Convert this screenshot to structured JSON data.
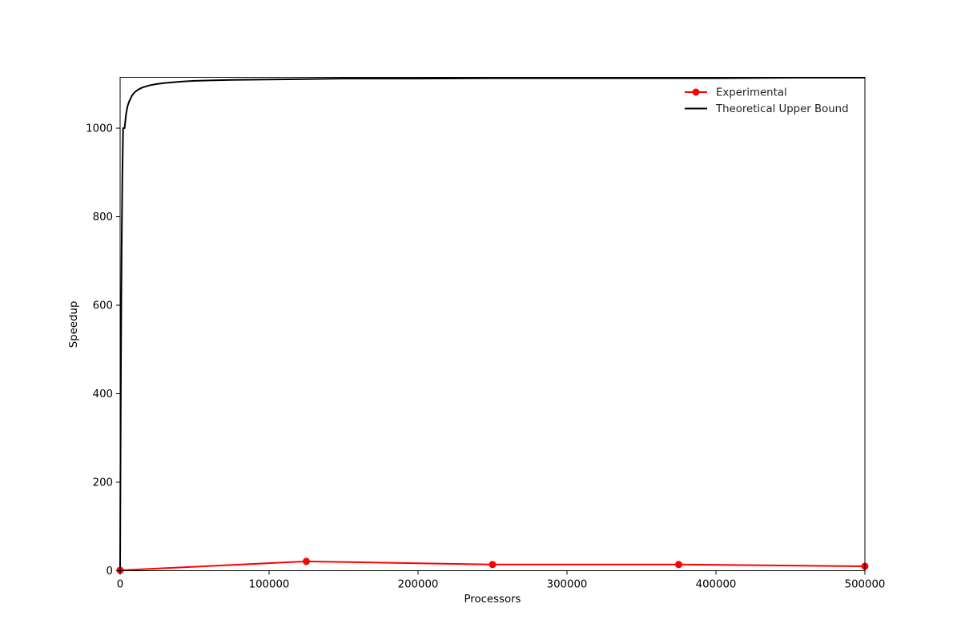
{
  "chart_data": {
    "type": "line",
    "xlabel": "Processors",
    "ylabel": "Speedup",
    "xlim": [
      0,
      500000
    ],
    "ylim": [
      0,
      1115
    ],
    "x_ticks": [
      0,
      100000,
      200000,
      300000,
      400000,
      500000
    ],
    "x_tick_labels": [
      "0",
      "100000",
      "200000",
      "300000",
      "400000",
      "500000"
    ],
    "y_ticks": [
      0,
      200,
      400,
      600,
      800,
      1000
    ],
    "y_tick_labels": [
      "0",
      "200",
      "400",
      "600",
      "800",
      "1000"
    ],
    "grid": false,
    "legend_position": "top-right",
    "series": [
      {
        "name": "Experimental",
        "color": "#ff0000",
        "marker": "circle",
        "x": [
          1,
          125000,
          250000,
          375000,
          500000
        ],
        "y": [
          1,
          21,
          14,
          14,
          10
        ]
      },
      {
        "name": "Theoretical Upper Bound",
        "color": "#000000",
        "marker": "none",
        "x": [
          1,
          100,
          250,
          500,
          750,
          1000,
          1500,
          2000,
          3000,
          4000,
          5000,
          6000,
          8000,
          10000,
          12500,
          15000,
          20000,
          25000,
          30000,
          40000,
          50000,
          60000,
          75000,
          100000,
          125000,
          150000,
          200000,
          250000,
          300000,
          350000,
          400000,
          450000,
          500000
        ],
        "y": [
          1,
          102,
          240,
          432,
          590,
          720,
          894,
          1000,
          1000,
          1032,
          1050,
          1060,
          1074,
          1082,
          1088,
          1092,
          1097,
          1100,
          1102,
          1105,
          1107,
          1108,
          1109,
          1110,
          1111,
          1112,
          1112,
          1113,
          1113,
          1113,
          1113,
          1114,
          1114
        ]
      }
    ]
  }
}
